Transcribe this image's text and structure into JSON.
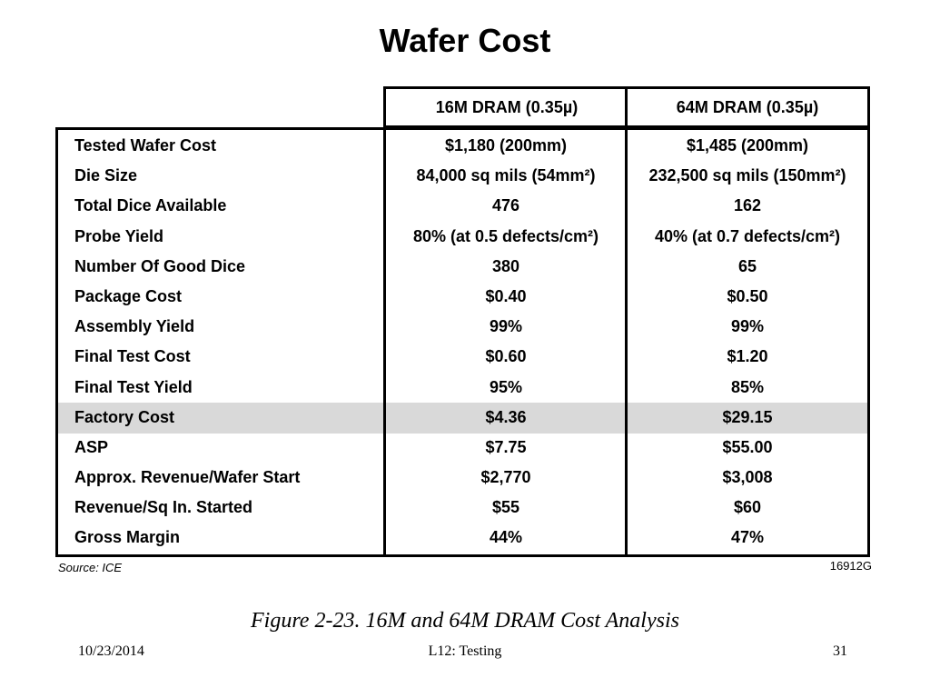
{
  "slide": {
    "title": "Wafer Cost"
  },
  "table": {
    "columns": [
      "16M DRAM (0.35µ)",
      "64M DRAM (0.35µ)"
    ],
    "rows": [
      {
        "label": "Tested Wafer Cost",
        "c1": "$1,180 (200mm)",
        "c2": "$1,485 (200mm)"
      },
      {
        "label": "Die Size",
        "c1": "84,000 sq mils (54mm²)",
        "c2": "232,500 sq mils (150mm²)"
      },
      {
        "label": "Total Dice Available",
        "c1": "476",
        "c2": "162"
      },
      {
        "label": "Probe Yield",
        "c1": "80% (at 0.5 defects/cm²)",
        "c2": "40% (at 0.7 defects/cm²)"
      },
      {
        "label": "Number Of Good Dice",
        "c1": "380",
        "c2": "65"
      },
      {
        "label": "Package Cost",
        "c1": "$0.40",
        "c2": "$0.50"
      },
      {
        "label": "Assembly Yield",
        "c1": "99%",
        "c2": "99%"
      },
      {
        "label": "Final Test Cost",
        "c1": "$0.60",
        "c2": "$1.20"
      },
      {
        "label": "Final Test Yield",
        "c1": "95%",
        "c2": "85%"
      },
      {
        "label": "Factory Cost",
        "c1": "$4.36",
        "c2": "$29.15"
      },
      {
        "label": "ASP",
        "c1": "$7.75",
        "c2": "$55.00"
      },
      {
        "label": "Approx. Revenue/Wafer Start",
        "c1": "$2,770",
        "c2": "$3,008"
      },
      {
        "label": "Revenue/Sq In. Started",
        "c1": "$55",
        "c2": "$60"
      },
      {
        "label": "Gross Margin",
        "c1": "44%",
        "c2": "47%"
      }
    ],
    "highlight_color": "#d9d9d9",
    "source": "Source: ICE",
    "figure_id": "16912G"
  },
  "caption": "Figure 2-23.  16M and 64M DRAM Cost Analysis",
  "footer": {
    "date": "10/23/2014",
    "center": "L12: Testing",
    "page": "31"
  }
}
